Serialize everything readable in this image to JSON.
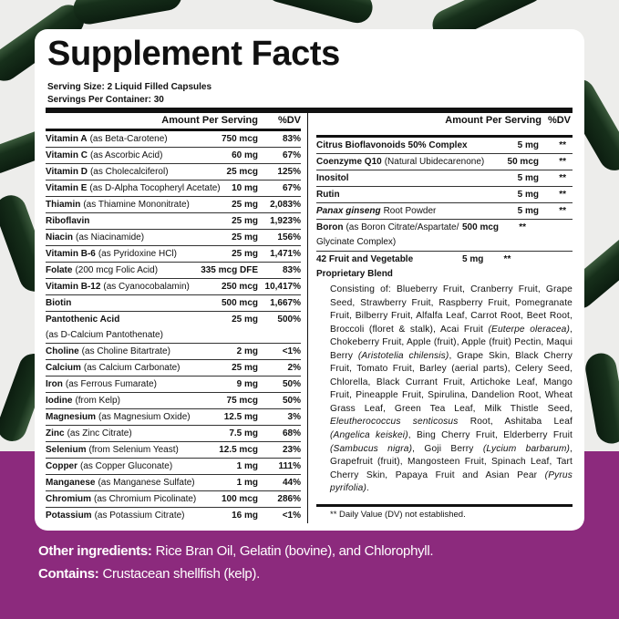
{
  "header": {
    "title": "Supplement Facts",
    "serving_size": "Serving Size: 2 Liquid Filled Capsules",
    "servings_per_container": "Servings Per Container: 30"
  },
  "left_table": {
    "columns": [
      "Amount Per Serving",
      "%DV"
    ],
    "rows": [
      {
        "name": "Vitamin A",
        "detail": "(as Beta-Carotene)",
        "amount": "750 mcg",
        "dv": "83%"
      },
      {
        "name": "Vitamin C",
        "detail": "(as Ascorbic Acid)",
        "amount": "60 mg",
        "dv": "67%"
      },
      {
        "name": "Vitamin D",
        "detail": "(as Cholecalciferol)",
        "amount": "25 mcg",
        "dv": "125%"
      },
      {
        "name": "Vitamin E",
        "detail": "(as D-Alpha Tocopheryl Acetate)",
        "amount": "10 mg",
        "dv": "67%"
      },
      {
        "name": "Thiamin",
        "detail": "(as Thiamine Mononitrate)",
        "amount": "25 mg",
        "dv": "2,083%"
      },
      {
        "name": "Riboflavin",
        "amount": "25 mg",
        "dv": "1,923%"
      },
      {
        "name": "Niacin",
        "detail": "(as Niacinamide)",
        "amount": "25 mg",
        "dv": "156%"
      },
      {
        "name": "Vitamin B-6",
        "detail": "(as Pyridoxine HCl)",
        "amount": "25 mg",
        "dv": "1,471%"
      },
      {
        "name": "Folate",
        "detail": "(200 mcg Folic Acid)",
        "amount": "335 mcg DFE",
        "dv": "83%"
      },
      {
        "name": "Vitamin B-12",
        "detail": "(as Cyanocobalamin)",
        "amount": "250 mcg",
        "dv": "10,417%"
      },
      {
        "name": "Biotin",
        "amount": "500 mcg",
        "dv": "1,667%"
      },
      {
        "name": "Pantothenic Acid",
        "detail": "(as D-Calcium Pantothenate)",
        "amount": "25 mg",
        "dv": "500%"
      },
      {
        "name": "Choline",
        "detail": "(as Choline Bitartrate)",
        "amount": "2 mg",
        "dv": "<1%"
      },
      {
        "name": "Calcium",
        "detail": "(as Calcium Carbonate)",
        "amount": "25 mg",
        "dv": "2%"
      },
      {
        "name": "Iron",
        "detail": "(as Ferrous Fumarate)",
        "amount": "9 mg",
        "dv": "50%"
      },
      {
        "name": "Iodine",
        "detail": "(from Kelp)",
        "amount": "75 mcg",
        "dv": "50%"
      },
      {
        "name": "Magnesium",
        "detail": "(as Magnesium Oxide)",
        "amount": "12.5 mg",
        "dv": "3%"
      },
      {
        "name": "Zinc",
        "detail": "(as Zinc Citrate)",
        "amount": "7.5 mg",
        "dv": "68%"
      },
      {
        "name": "Selenium",
        "detail": "(from Selenium Yeast)",
        "amount": "12.5 mcg",
        "dv": "23%"
      },
      {
        "name": "Copper",
        "detail": "(as Copper Gluconate)",
        "amount": "1 mg",
        "dv": "111%"
      },
      {
        "name": "Manganese",
        "detail": "(as Manganese Sulfate)",
        "amount": "1 mg",
        "dv": "44%"
      },
      {
        "name": "Chromium",
        "detail": "(as Chromium Picolinate)",
        "amount": "100 mcg",
        "dv": "286%"
      },
      {
        "name": "Potassium",
        "detail": "(as Potassium Citrate)",
        "amount": "16 mg",
        "dv": "<1%"
      }
    ]
  },
  "right_table": {
    "columns": [
      "Amount Per Serving",
      "%DV"
    ],
    "rows": [
      {
        "name": "Citrus Bioflavonoids 50% Complex",
        "amount": "5 mg",
        "dv": "**"
      },
      {
        "name": "Coenzyme Q10",
        "detail": "(Natural Ubidecarenone)",
        "amount": "50 mcg",
        "dv": "**"
      },
      {
        "name": "Inositol",
        "amount": "5 mg",
        "dv": "**"
      },
      {
        "name": "Rutin",
        "amount": "5 mg",
        "dv": "**"
      },
      {
        "name": "Panax ginseng",
        "detail": "Root Powder",
        "amount": "5 mg",
        "dv": "**"
      },
      {
        "name": "Boron",
        "detail": "(as Boron Citrate/Aspartate/ Glycinate Complex)",
        "amount": "500 mcg",
        "dv": "**"
      },
      {
        "name": "42 Fruit and Vegetable Proprietary Blend",
        "amount": "5 mg",
        "dv": "**"
      }
    ],
    "blend_description": [
      {
        "text": "Consisting of: Blueberry Fruit, Cranberry Fruit, Grape Seed, Strawberry Fruit, Raspberry Fruit, Pomegranate Fruit, Bilberry Fruit, Alfalfa Leaf, Carrot Root, Beet Root, Broccoli (floret & stalk), Acai Fruit ",
        "italic": false
      },
      {
        "text": "(Euterpe oleracea)",
        "italic": true
      },
      {
        "text": ", Chokeberry Fruit, Apple (fruit), Apple (fruit) Pectin, Maqui Berry ",
        "italic": false
      },
      {
        "text": "(Aristotelia chilensis)",
        "italic": true
      },
      {
        "text": ", Grape Skin, Black Cherry Fruit, Tomato Fruit, Barley (aerial parts), Celery Seed, Chlorella, Black Currant Fruit, Artichoke Leaf, Mango Fruit, Pineapple Fruit, Spirulina, Dandelion Root, Wheat Grass Leaf, Green Tea Leaf, Milk Thistle Seed, ",
        "italic": false
      },
      {
        "text": "Eleutherococcus senticosus",
        "italic": true
      },
      {
        "text": " Root, Ashitaba Leaf ",
        "italic": false
      },
      {
        "text": "(Angelica keiskei)",
        "italic": true
      },
      {
        "text": ", Bing Cherry Fruit, Elderberry Fruit ",
        "italic": false
      },
      {
        "text": "(Sambucus nigra)",
        "italic": true
      },
      {
        "text": ", Goji Berry ",
        "italic": false
      },
      {
        "text": "(Lycium barbarum)",
        "italic": true
      },
      {
        "text": ", Grapefruit (fruit), Mangosteen Fruit, Spinach Leaf, Tart Cherry Skin, Papaya Fruit and Asian Pear ",
        "italic": false
      },
      {
        "text": "(Pyrus pyrifolia)",
        "italic": true
      },
      {
        "text": ".",
        "italic": false
      }
    ],
    "footnote": "** Daily Value (DV) not established."
  },
  "footer": {
    "other_ingredients": {
      "label": "Other ingredients:",
      "text": "Rice Bran Oil, Gelatin (bovine), and Chlorophyll."
    },
    "contains": {
      "label": "Contains:",
      "text": "Crustacean shellfish (kelp)."
    }
  }
}
